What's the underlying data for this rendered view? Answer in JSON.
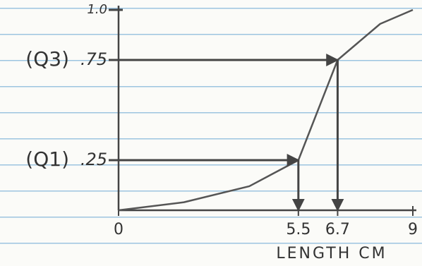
{
  "chart_data": {
    "type": "line",
    "x": [
      0,
      2,
      4,
      5.5,
      6.7,
      8,
      9
    ],
    "series": [
      {
        "values": [
          0,
          0.04,
          0.12,
          0.25,
          0.75,
          0.93,
          1.0
        ],
        "color": "#555"
      }
    ],
    "xlim": [
      0,
      9
    ],
    "xticks": [
      0,
      5.5,
      6.7,
      9
    ],
    "ylim": [
      0,
      1
    ],
    "yticks": [
      {
        "value": 0.25,
        "label": ".25"
      },
      {
        "value": 0.75,
        "label": ".75"
      },
      {
        "value": 1.0,
        "label": "1.0"
      }
    ],
    "quartiles": [
      {
        "name": "(Q1)",
        "x": 5.5,
        "y": 0.25
      },
      {
        "name": "(Q3)",
        "x": 6.7,
        "y": 0.75
      }
    ],
    "xlabel": "LENGTH CM"
  }
}
